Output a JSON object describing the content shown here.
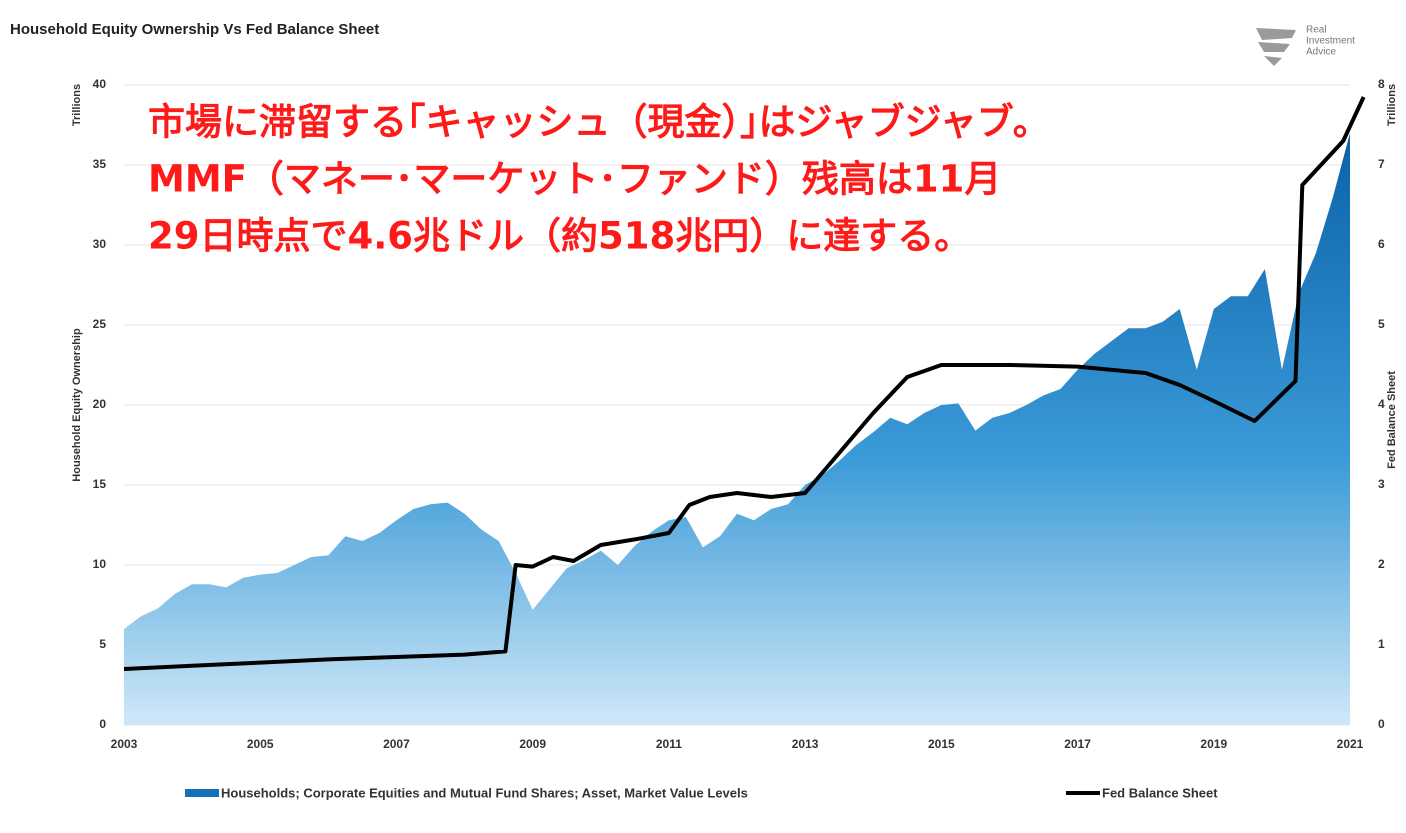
{
  "chart_data": {
    "type": "area_line",
    "title": "Household Equity Ownership Vs Fed Balance Sheet",
    "logo": [
      "Real",
      "Investment",
      "Advice"
    ],
    "annotation": [
      "市場に滞留する｢キャッシュ（現金）｣はジャブジャブ。",
      "MMF（マネー･マーケット･ファンド）残高は11月",
      "29日時点で4.6兆ドル（約518兆円）に達する。"
    ],
    "y_unit": "Trillions",
    "y2_unit": "Trillions",
    "ylabel": "Household Equity Ownership",
    "y2label": "Fed Balance Sheet",
    "xlim": [
      2003,
      2021
    ],
    "xticks": [
      2003,
      2005,
      2007,
      2009,
      2011,
      2013,
      2015,
      2017,
      2019,
      2021
    ],
    "ylim": [
      0,
      40
    ],
    "yticks": [
      0,
      5,
      10,
      15,
      20,
      25,
      30,
      35,
      40
    ],
    "y2lim": [
      0,
      8
    ],
    "y2ticks": [
      0,
      1,
      2,
      3,
      4,
      5,
      6,
      7,
      8
    ],
    "grid": true,
    "series": [
      {
        "name": "Households; Corporate Equities and Mutual Fund Shares; Asset, Market Value Levels",
        "kind": "area",
        "color": "#1670b5",
        "x": [
          2003,
          2003.25,
          2003.5,
          2003.75,
          2004,
          2004.25,
          2004.5,
          2004.75,
          2005,
          2005.25,
          2005.5,
          2005.75,
          2006,
          2006.25,
          2006.5,
          2006.75,
          2007,
          2007.25,
          2007.5,
          2007.75,
          2008,
          2008.25,
          2008.5,
          2008.75,
          2009,
          2009.25,
          2009.5,
          2009.75,
          2010,
          2010.25,
          2010.5,
          2010.75,
          2011,
          2011.25,
          2011.5,
          2011.75,
          2012,
          2012.25,
          2012.5,
          2012.75,
          2013,
          2013.25,
          2013.5,
          2013.75,
          2014,
          2014.25,
          2014.5,
          2014.75,
          2015,
          2015.25,
          2015.5,
          2015.75,
          2016,
          2016.25,
          2016.5,
          2016.75,
          2017,
          2017.25,
          2017.5,
          2017.75,
          2018,
          2018.25,
          2018.5,
          2018.75,
          2019,
          2019.25,
          2019.5,
          2019.75,
          2020,
          2020.25,
          2020.5,
          2020.75,
          2021
        ],
        "values": [
          6,
          6.8,
          7.3,
          8.2,
          8.8,
          8.8,
          8.6,
          9.2,
          9.4,
          9.5,
          10,
          10.5,
          10.6,
          11.8,
          11.5,
          12,
          12.8,
          13.5,
          13.8,
          13.9,
          13.2,
          12.2,
          11.5,
          9.5,
          7.2,
          8.5,
          9.8,
          10.3,
          10.9,
          10,
          11.2,
          12.1,
          12.8,
          13,
          11.1,
          11.8,
          13.2,
          12.8,
          13.5,
          13.8,
          15,
          15.6,
          16.5,
          17.5,
          18.3,
          19.2,
          18.8,
          19.5,
          20,
          20.1,
          18.4,
          19.2,
          19.5,
          20,
          20.6,
          21,
          22.2,
          23.2,
          24,
          24.8,
          24.8,
          25.2,
          26,
          22.2,
          26,
          26.8,
          26.8,
          28.5,
          22.2,
          27,
          29.5,
          33,
          37
        ]
      },
      {
        "name": "Fed Balance Sheet",
        "kind": "line",
        "color": "#000000",
        "axis": "y2",
        "x": [
          2003,
          2004,
          2005,
          2006,
          2007,
          2008,
          2008.6,
          2008.75,
          2009,
          2009.3,
          2009.6,
          2010,
          2010.5,
          2011,
          2011.3,
          2011.6,
          2012,
          2012.5,
          2013,
          2013.5,
          2014,
          2014.5,
          2015,
          2016,
          2017,
          2018,
          2018.5,
          2019,
          2019.6,
          2020.2,
          2020.3,
          2020.9,
          2021.2
        ],
        "values": [
          0.7,
          0.74,
          0.78,
          0.82,
          0.85,
          0.88,
          0.92,
          2,
          1.98,
          2.1,
          2.05,
          2.25,
          2.32,
          2.4,
          2.75,
          2.85,
          2.9,
          2.85,
          2.9,
          3.4,
          3.9,
          4.35,
          4.5,
          4.5,
          4.48,
          4.4,
          4.25,
          4.05,
          3.8,
          4.3,
          6.75,
          7.3,
          7.85
        ]
      }
    ]
  }
}
